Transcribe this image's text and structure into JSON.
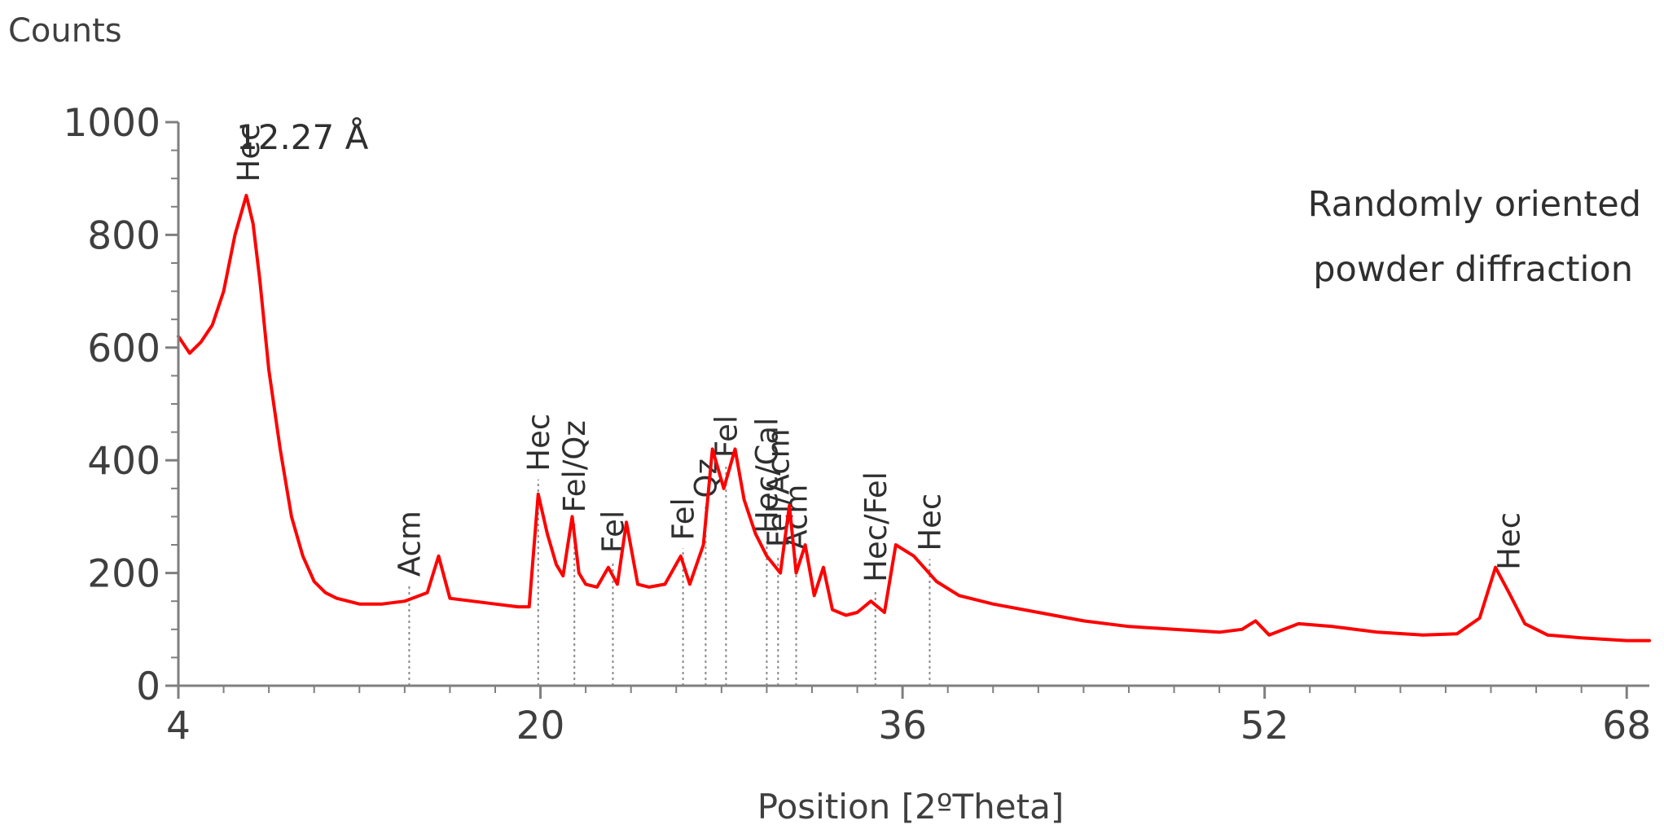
{
  "chart_data": {
    "type": "line",
    "title": "",
    "xlabel": "Position [2ºTheta]",
    "ylabel": "Counts",
    "xlim": [
      4,
      69
    ],
    "ylim": [
      0,
      1000
    ],
    "x_ticks": [
      4,
      20,
      36,
      52,
      68
    ],
    "x_ticks_labels": [
      "4",
      "20",
      "36",
      "52",
      "68"
    ],
    "y_ticks": [
      0,
      200,
      400,
      600,
      800,
      1000
    ],
    "y_ticks_labels": [
      "0",
      "200",
      "400",
      "600",
      "800",
      "1000"
    ],
    "grid": false,
    "legend": null,
    "colors": {
      "series": "#ff0000",
      "axis": "#7f7f7f",
      "marker_lines": "#8a8a8a",
      "text": "#3f3f3f"
    },
    "series": [
      {
        "x": [
          4,
          4.5,
          5,
          5.5,
          6,
          6.5,
          7,
          7.3,
          7.6,
          8,
          8.5,
          9,
          9.5,
          10,
          10.5,
          11,
          11.5,
          12,
          13,
          14,
          15,
          15.5,
          16,
          17,
          18,
          19,
          19.5,
          19.9,
          20.3,
          20.7,
          21,
          21.4,
          21.7,
          22,
          22.5,
          23,
          23.4,
          23.8,
          24.3,
          24.8,
          25.5,
          26.2,
          26.6,
          27.2,
          27.6,
          28.1,
          28.6,
          29,
          29.5,
          30,
          30.6,
          31,
          31.3,
          31.7,
          32.1,
          32.5,
          32.9,
          33.5,
          34,
          34.6,
          35.2,
          35.7,
          36.5,
          37.5,
          38.5,
          40,
          42,
          44,
          46,
          48,
          50,
          51,
          51.6,
          52.2,
          53.5,
          55,
          57,
          59,
          60.5,
          61.5,
          62.2,
          62.8,
          63.5,
          64.5,
          66,
          68,
          69
        ],
        "y": [
          620,
          590,
          610,
          640,
          700,
          800,
          870,
          820,
          720,
          560,
          420,
          300,
          230,
          185,
          165,
          155,
          150,
          145,
          145,
          150,
          165,
          230,
          155,
          150,
          145,
          140,
          140,
          340,
          270,
          215,
          195,
          300,
          200,
          180,
          175,
          210,
          180,
          290,
          180,
          175,
          180,
          230,
          180,
          250,
          420,
          350,
          420,
          330,
          270,
          230,
          200,
          320,
          200,
          250,
          160,
          210,
          135,
          125,
          130,
          150,
          130,
          250,
          230,
          185,
          160,
          145,
          130,
          115,
          105,
          100,
          95,
          100,
          115,
          90,
          110,
          105,
          95,
          90,
          92,
          120,
          210,
          165,
          110,
          90,
          85,
          80,
          80
        ]
      }
    ],
    "annotations": [
      {
        "text": "Hec",
        "x": 7.1,
        "line": false
      },
      {
        "text": "Acm",
        "x": 14.2,
        "line": true
      },
      {
        "text": "Hec",
        "x": 19.9,
        "line": true
      },
      {
        "text": "Fel/Qz",
        "x": 21.5,
        "line": true
      },
      {
        "text": "Fel",
        "x": 23.2,
        "line": true
      },
      {
        "text": "Fel",
        "x": 26.3,
        "line": true
      },
      {
        "text": "Qz",
        "x": 27.3,
        "line": true
      },
      {
        "text": "Fel",
        "x": 28.2,
        "line": true
      },
      {
        "text": "Hec/Cal",
        "x": 30.0,
        "line": true
      },
      {
        "text": "Fel/Acm",
        "x": 30.5,
        "line": true
      },
      {
        "text": "Acm",
        "x": 31.3,
        "line": true
      },
      {
        "text": "Hec/Fel",
        "x": 34.8,
        "line": true
      },
      {
        "text": "Hec",
        "x": 37.2,
        "line": true
      },
      {
        "text": "Hec",
        "x": 62.8,
        "line": false
      }
    ],
    "peak_label": "12.27 Å",
    "inset_text": [
      "Randomly oriented",
      "powder diffraction"
    ]
  }
}
